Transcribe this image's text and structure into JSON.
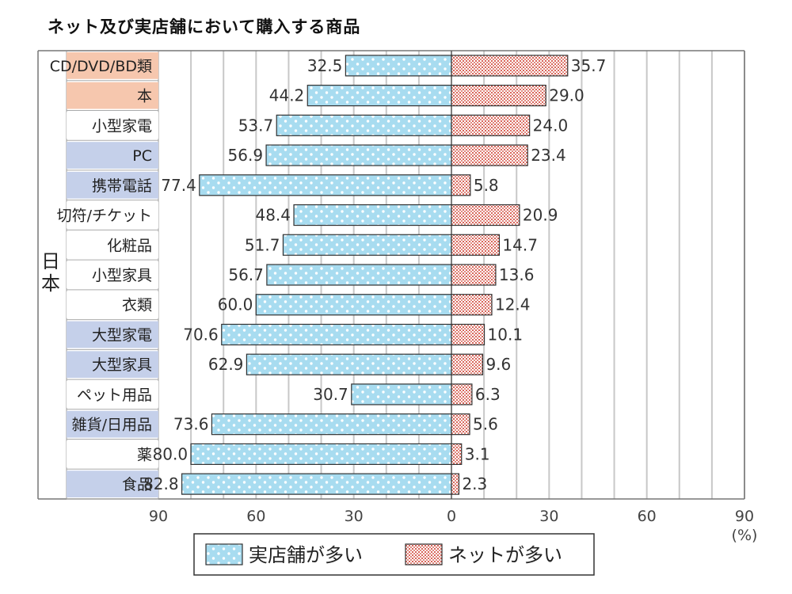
{
  "title": "ネット及び実店舗において購入する商品",
  "chart_data": {
    "type": "bar",
    "orientation": "diverging-horizontal",
    "group_label": "日本",
    "categories": [
      "CD/DVD/BD類",
      "本",
      "小型家電",
      "PC",
      "携帯電話",
      "切符/チケット",
      "化粧品",
      "小型家具",
      "衣類",
      "大型家電",
      "大型家具",
      "ペット用品",
      "雑貨/日用品",
      "薬",
      "食品"
    ],
    "category_highlight": [
      "orange",
      "orange",
      "none",
      "blue",
      "blue",
      "none",
      "none",
      "none",
      "none",
      "blue",
      "blue",
      "none",
      "blue",
      "none",
      "blue"
    ],
    "series": [
      {
        "name": "実店舗が多い",
        "direction": "left",
        "values": [
          32.5,
          44.2,
          53.7,
          56.9,
          77.4,
          48.4,
          51.7,
          56.7,
          60.0,
          70.6,
          62.9,
          30.7,
          73.6,
          80.0,
          82.8
        ]
      },
      {
        "name": "ネットが多い",
        "direction": "right",
        "values": [
          35.7,
          29.0,
          24.0,
          23.4,
          5.8,
          20.9,
          14.7,
          13.6,
          12.4,
          10.1,
          9.6,
          6.3,
          5.6,
          3.1,
          2.3
        ]
      }
    ],
    "xlim": [
      -90,
      90
    ],
    "tick_values": [
      -90,
      -60,
      -30,
      0,
      30,
      60,
      90
    ],
    "tick_labels": [
      "90",
      "60",
      "30",
      "0",
      "30",
      "60",
      "90"
    ],
    "unit_label": "(%)",
    "grid": true,
    "legend_position": "bottom",
    "colors": {
      "store_fill": "#a8dcf0",
      "store_dot": "#ffffff",
      "net_fill": "#ffffff",
      "net_pattern": "#d9655a",
      "highlight_orange": "#f6c7ae",
      "highlight_blue": "#c5d0ea",
      "grid": "#c8c8c8"
    }
  }
}
